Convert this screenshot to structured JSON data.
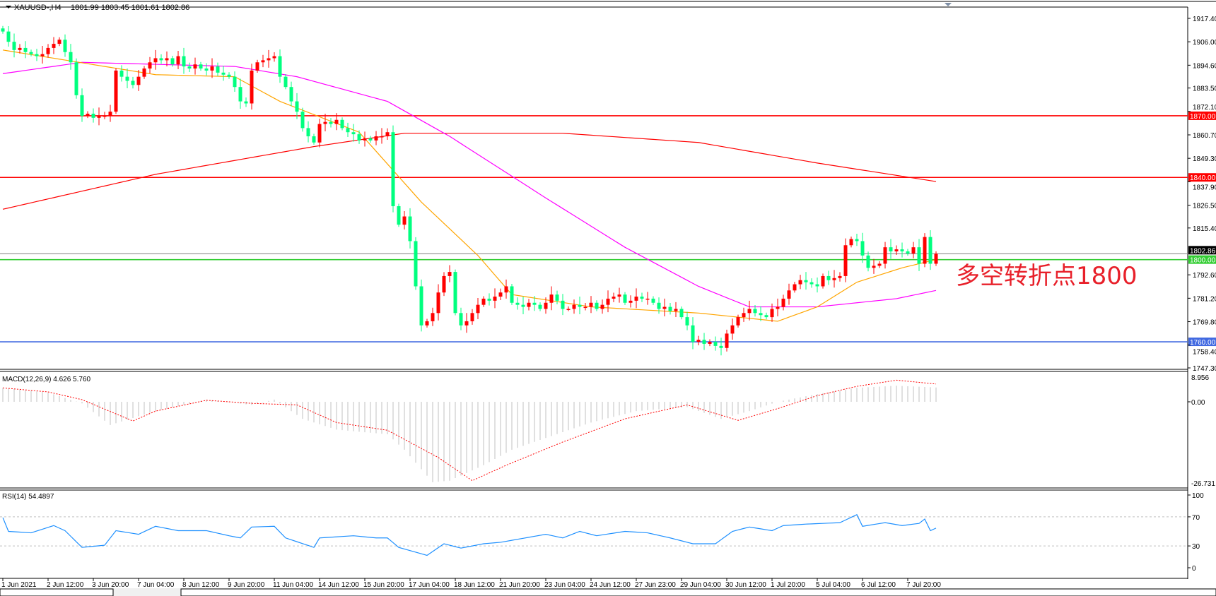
{
  "header": {
    "symbol": "XAUUSD-,H4",
    "ohlc": "1801.99 1803.45 1801.61 1802.86"
  },
  "annotation": "多空转折点1800",
  "colors": {
    "bull_candle": "#ff0000",
    "bear_candle": "#00ff7f",
    "ma_fast": "#ffa500",
    "ma_mid": "#ff00ff",
    "ma_slow": "#ff0000",
    "level_resistance": "#ff0000",
    "level_pivot": "#32cd32",
    "level_support": "#4169e1",
    "macd_hist": "#c0c0c0",
    "macd_signal": "#ff0000",
    "rsi": "#1e90ff"
  },
  "chart_data": [
    {
      "type": "candlestick",
      "title": "XAUUSD-,H4",
      "price_axis_ticks": [
        "1917.40",
        "1906.00",
        "1894.60",
        "1883.50",
        "1872.10",
        "1860.70",
        "1849.30",
        "1837.90",
        "1826.50",
        "1815.40",
        "1802.86",
        "1792.60",
        "1781.20",
        "1769.80",
        "1758.40",
        "1747.30"
      ],
      "ylim": [
        1747.3,
        1917.4
      ],
      "x_tick_labels": [
        "1 Jun 2021",
        "2 Jun 12:00",
        "3 Jun 20:00",
        "7 Jun 04:00",
        "8 Jun 12:00",
        "9 Jun 20:00",
        "11 Jun 04:00",
        "14 Jun 12:00",
        "15 Jun 20:00",
        "17 Jun 04:00",
        "18 Jun 12:00",
        "21 Jun 20:00",
        "23 Jun 04:00",
        "24 Jun 12:00",
        "27 Jun 23:00",
        "29 Jun 04:00",
        "30 Jun 12:00",
        "1 Jul 20:00",
        "5 Jul 04:00",
        "6 Jul 12:00",
        "7 Jul 20:00"
      ],
      "bars_per_x_label": 8,
      "close": [
        1911,
        1906,
        1902,
        1903,
        1901,
        1900,
        1899,
        1900,
        1903,
        1905,
        1907,
        1901,
        1896,
        1880,
        1870,
        1871,
        1869,
        1870,
        1870,
        1872,
        1892,
        1889,
        1887,
        1885,
        1889,
        1893,
        1896,
        1898,
        1897,
        1898,
        1895,
        1899,
        1894,
        1893,
        1895,
        1893,
        1892,
        1894,
        1891,
        1890,
        1889,
        1884,
        1877,
        1876,
        1892,
        1896,
        1897,
        1898,
        1899,
        1889,
        1884,
        1877,
        1872,
        1864,
        1860,
        1857,
        1866,
        1867,
        1866,
        1868,
        1864,
        1862,
        1861,
        1858,
        1859,
        1858,
        1860,
        1860,
        1862,
        1826,
        1817,
        1821,
        1809,
        1787,
        1768,
        1770,
        1774,
        1784,
        1792,
        1794,
        1774,
        1768,
        1770,
        1774,
        1778,
        1781,
        1780,
        1782,
        1784,
        1787,
        1779,
        1778,
        1777,
        1779,
        1778,
        1776,
        1779,
        1783,
        1780,
        1776,
        1776,
        1778,
        1777,
        1777,
        1779,
        1776,
        1778,
        1781,
        1782,
        1783,
        1779,
        1780,
        1782,
        1781,
        1781,
        1779,
        1776,
        1777,
        1775,
        1776,
        1772,
        1768,
        1760,
        1761,
        1759,
        1760,
        1758,
        1757,
        1764,
        1768,
        1772,
        1774,
        1776,
        1774,
        1773,
        1772,
        1776,
        1777,
        1781,
        1785,
        1788,
        1790,
        1789,
        1788,
        1787,
        1792,
        1790,
        1791,
        1792,
        1807,
        1810,
        1809,
        1802,
        1796,
        1797,
        1798,
        1806,
        1804,
        1805,
        1804,
        1803,
        1806,
        1798,
        1811,
        1798,
        1802.86
      ],
      "last_price": "1802.86",
      "levels": [
        {
          "value": 1870,
          "label": "1870.00",
          "role": "resistance"
        },
        {
          "value": 1840,
          "label": "1840.00",
          "role": "resistance"
        },
        {
          "value": 1800,
          "label": "1800.00",
          "role": "pivot"
        },
        {
          "value": 1760,
          "label": "1760.00",
          "role": "support"
        }
      ],
      "moving_averages": {
        "fast": [
          [
            0,
            1902
          ],
          [
            27,
            1890
          ],
          [
            41,
            1889
          ],
          [
            49,
            1877
          ],
          [
            63,
            1862
          ],
          [
            74,
            1828
          ],
          [
            84,
            1802
          ],
          [
            90,
            1783
          ],
          [
            104,
            1777
          ],
          [
            123,
            1774
          ],
          [
            137,
            1770
          ],
          [
            144,
            1777
          ],
          [
            151,
            1789
          ],
          [
            159,
            1796
          ],
          [
            165,
            1800
          ]
        ],
        "mid": [
          [
            0,
            1890.5
          ],
          [
            14,
            1896
          ],
          [
            41,
            1894
          ],
          [
            52,
            1889
          ],
          [
            68,
            1877
          ],
          [
            79,
            1860
          ],
          [
            96,
            1830
          ],
          [
            110,
            1806
          ],
          [
            123,
            1787
          ],
          [
            132,
            1777
          ],
          [
            144,
            1777
          ],
          [
            158,
            1781
          ],
          [
            165,
            1785
          ]
        ],
        "slow": [
          [
            0,
            1824.5
          ],
          [
            27,
            1841.5
          ],
          [
            55,
            1855
          ],
          [
            71,
            1861.5
          ],
          [
            99,
            1861.5
          ],
          [
            123,
            1857
          ],
          [
            144,
            1847
          ],
          [
            165,
            1838
          ]
        ]
      }
    },
    {
      "type": "bar",
      "title": "MACD(12,26,9) 4.626 5.760",
      "axis_ticks": [
        "8.956",
        "0.00",
        "-26.731"
      ],
      "ylim": [
        -26.731,
        8.956
      ],
      "histogram": [
        [
          0,
          4.5
        ],
        [
          8,
          3
        ],
        [
          14,
          -0.5
        ],
        [
          19,
          -7.5
        ],
        [
          27,
          -3
        ],
        [
          36,
          0.7
        ],
        [
          44,
          -1
        ],
        [
          48,
          0.7
        ],
        [
          53,
          -5.5
        ],
        [
          59,
          -9
        ],
        [
          68,
          -10.5
        ],
        [
          71,
          -15.5
        ],
        [
          76,
          -26
        ],
        [
          79,
          -25.5
        ],
        [
          85,
          -20.5
        ],
        [
          90,
          -15.5
        ],
        [
          96,
          -11.7
        ],
        [
          104,
          -6.7
        ],
        [
          112,
          -3
        ],
        [
          121,
          -1.7
        ],
        [
          127,
          -5.5
        ],
        [
          132,
          -3
        ],
        [
          137,
          0
        ],
        [
          144,
          2.5
        ],
        [
          151,
          4.5
        ],
        [
          158,
          5.2
        ],
        [
          165,
          4.626
        ]
      ],
      "signal": [
        [
          0,
          4.5
        ],
        [
          8,
          3.2
        ],
        [
          14,
          0.7
        ],
        [
          23,
          -6.2
        ],
        [
          27,
          -3
        ],
        [
          36,
          0.5
        ],
        [
          44,
          -0.5
        ],
        [
          52,
          -1
        ],
        [
          59,
          -6.7
        ],
        [
          68,
          -9.2
        ],
        [
          77,
          -18
        ],
        [
          83,
          -25.5
        ],
        [
          89,
          -20.5
        ],
        [
          99,
          -13
        ],
        [
          110,
          -5.5
        ],
        [
          121,
          -1
        ],
        [
          130,
          -6
        ],
        [
          137,
          -2.2
        ],
        [
          144,
          2
        ],
        [
          151,
          5
        ],
        [
          158,
          7
        ],
        [
          165,
          5.76
        ]
      ]
    },
    {
      "type": "line",
      "title": "RSI(14) 54.4897",
      "axis_ticks": [
        "100",
        "70",
        "30",
        "0"
      ],
      "ylim": [
        0,
        100
      ],
      "levels": [
        70,
        30
      ],
      "values": [
        [
          0,
          69
        ],
        [
          1,
          50
        ],
        [
          5,
          48
        ],
        [
          9,
          58
        ],
        [
          11,
          51
        ],
        [
          14,
          28
        ],
        [
          18,
          31
        ],
        [
          20,
          51
        ],
        [
          24,
          46
        ],
        [
          27,
          57
        ],
        [
          31,
          51
        ],
        [
          36,
          51
        ],
        [
          40,
          44
        ],
        [
          42,
          41
        ],
        [
          44,
          56
        ],
        [
          48,
          57
        ],
        [
          50,
          41
        ],
        [
          55,
          28
        ],
        [
          56,
          41
        ],
        [
          62,
          44
        ],
        [
          66,
          41
        ],
        [
          68,
          41
        ],
        [
          70,
          28
        ],
        [
          75,
          17
        ],
        [
          78,
          33
        ],
        [
          81,
          27
        ],
        [
          85,
          33
        ],
        [
          88,
          35
        ],
        [
          96,
          46
        ],
        [
          99,
          41
        ],
        [
          102,
          50
        ],
        [
          105,
          44
        ],
        [
          110,
          50
        ],
        [
          114,
          48
        ],
        [
          118,
          41
        ],
        [
          122,
          33
        ],
        [
          126,
          33
        ],
        [
          129,
          50
        ],
        [
          132,
          56
        ],
        [
          136,
          51
        ],
        [
          138,
          58
        ],
        [
          142,
          60
        ],
        [
          148,
          62
        ],
        [
          151,
          73
        ],
        [
          152,
          57
        ],
        [
          156,
          62
        ],
        [
          159,
          58
        ],
        [
          162,
          61
        ],
        [
          163,
          67
        ],
        [
          164,
          51
        ],
        [
          165,
          54.49
        ]
      ]
    }
  ]
}
